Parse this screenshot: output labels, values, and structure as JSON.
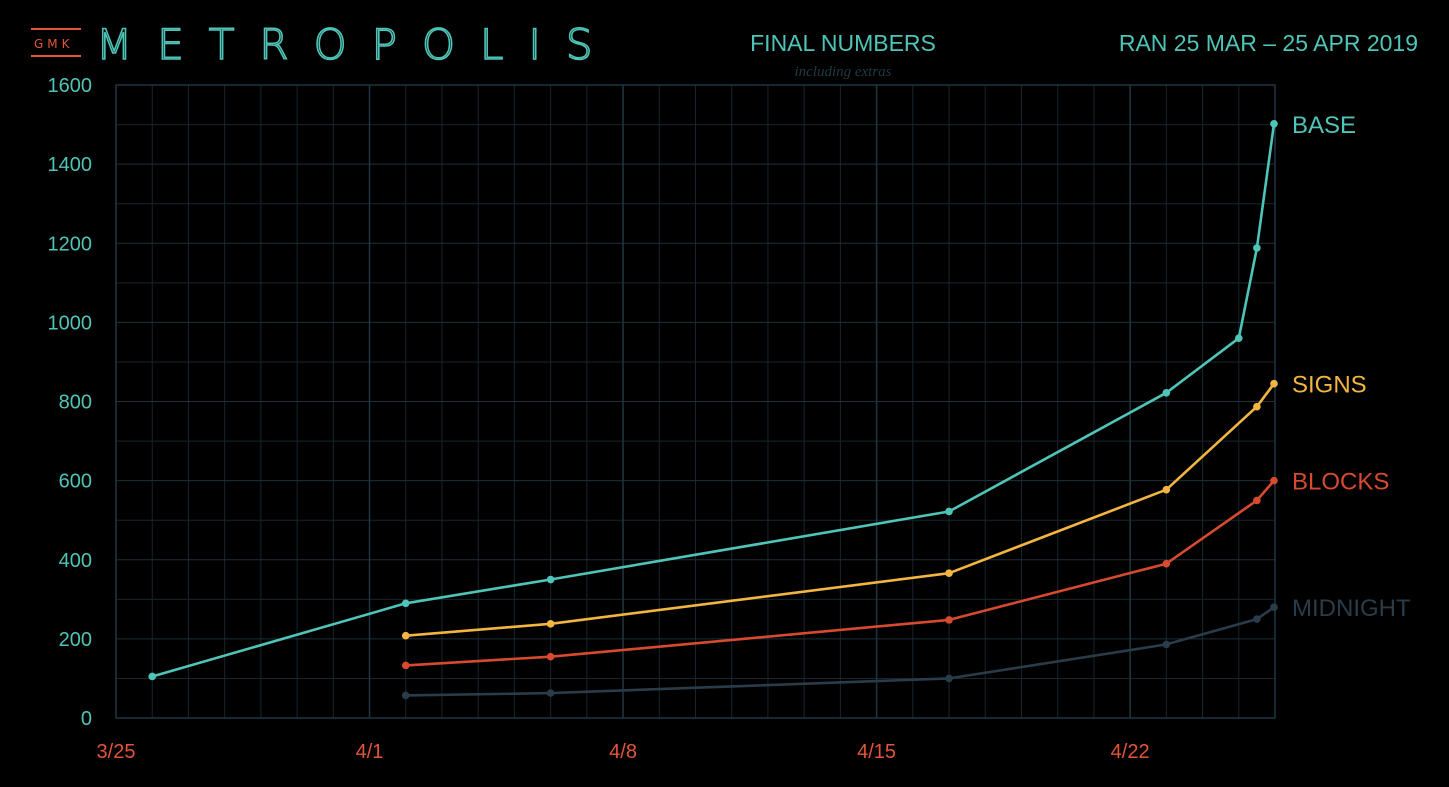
{
  "header": {
    "brand_prefix": "GMK",
    "brand_name": "METROPOLIS",
    "title": "FINAL NUMBERS",
    "subtitle": "including extras",
    "run_dates": "RAN 25 MAR – 25 APR 2019"
  },
  "colors": {
    "background": "#000000",
    "grid": "#15262e",
    "accent_teal": "#4fc4b8",
    "accent_red": "#e2553a"
  },
  "chart_data": {
    "type": "line",
    "title": "FINAL NUMBERS",
    "subtitle": "including extras",
    "xlabel": "",
    "ylabel": "",
    "x_range": [
      "2019-03-25",
      "2019-04-26"
    ],
    "ylim": [
      0,
      1600
    ],
    "x_ticks": [
      {
        "date": "2019-03-25",
        "label": "3/25"
      },
      {
        "date": "2019-04-01",
        "label": "4/1"
      },
      {
        "date": "2019-04-08",
        "label": "4/8"
      },
      {
        "date": "2019-04-15",
        "label": "4/15"
      },
      {
        "date": "2019-04-22",
        "label": "4/22"
      }
    ],
    "y_ticks": [
      0,
      200,
      400,
      600,
      800,
      1000,
      1200,
      1400,
      1600
    ],
    "grid": true,
    "legend": "inline-right",
    "series": [
      {
        "name": "BASE",
        "color": "#4fc4b8",
        "points": [
          {
            "date": "2019-03-26",
            "value": 105
          },
          {
            "date": "2019-04-02",
            "value": 290
          },
          {
            "date": "2019-04-06",
            "value": 350
          },
          {
            "date": "2019-04-17",
            "value": 522
          },
          {
            "date": "2019-04-23",
            "value": 822
          },
          {
            "date": "2019-04-25",
            "value": 960
          },
          {
            "date": "2019-04-26",
            "value": 1188
          },
          {
            "date": "2019-04-26",
            "value": 1502
          }
        ]
      },
      {
        "name": "SIGNS",
        "color": "#f2b542",
        "points": [
          {
            "date": "2019-04-02",
            "value": 208
          },
          {
            "date": "2019-04-06",
            "value": 238
          },
          {
            "date": "2019-04-17",
            "value": 366
          },
          {
            "date": "2019-04-23",
            "value": 577
          },
          {
            "date": "2019-04-26",
            "value": 787
          },
          {
            "date": "2019-04-26",
            "value": 845
          }
        ]
      },
      {
        "name": "BLOCKS",
        "color": "#d64a2f",
        "points": [
          {
            "date": "2019-04-02",
            "value": 133
          },
          {
            "date": "2019-04-06",
            "value": 155
          },
          {
            "date": "2019-04-17",
            "value": 248
          },
          {
            "date": "2019-04-23",
            "value": 390
          },
          {
            "date": "2019-04-26",
            "value": 550
          },
          {
            "date": "2019-04-26",
            "value": 600
          }
        ]
      },
      {
        "name": "MIDNIGHT",
        "color": "#2a3c4a",
        "points": [
          {
            "date": "2019-04-02",
            "value": 57
          },
          {
            "date": "2019-04-06",
            "value": 63
          },
          {
            "date": "2019-04-17",
            "value": 100
          },
          {
            "date": "2019-04-23",
            "value": 186
          },
          {
            "date": "2019-04-26",
            "value": 250
          },
          {
            "date": "2019-04-26",
            "value": 280
          }
        ]
      }
    ]
  }
}
